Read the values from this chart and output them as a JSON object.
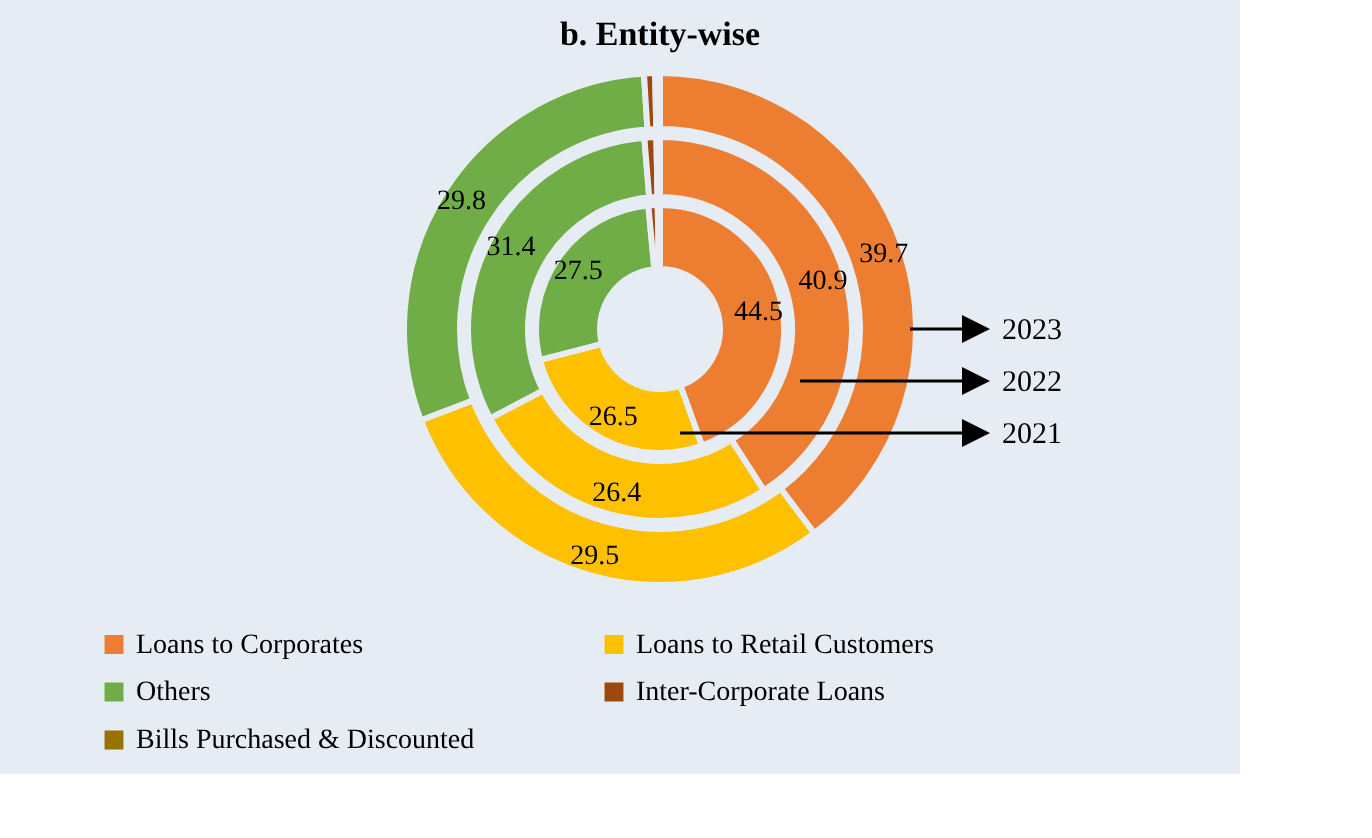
{
  "chart_data": {
    "type": "donut",
    "title": "b. Entity-wise",
    "categories": [
      "Loans to Corporates",
      "Loans to Retail Customers",
      "Others",
      "Inter-Corporate Loans",
      "Bills Purchased & Discounted"
    ],
    "colors": [
      "#ed7d31",
      "#ffc000",
      "#70ad47",
      "#9e480e",
      "#997300"
    ],
    "series": [
      {
        "name": "2021",
        "values": [
          44.5,
          26.5,
          27.5,
          1.2,
          0.3
        ],
        "value_labels": [
          "44.5",
          "26.5",
          "27.5",
          null,
          null
        ]
      },
      {
        "name": "2022",
        "values": [
          40.9,
          26.4,
          31.4,
          1.0,
          0.3
        ],
        "value_labels": [
          "40.9",
          "26.4",
          "31.4",
          null,
          null
        ]
      },
      {
        "name": "2023",
        "values": [
          39.7,
          29.5,
          29.8,
          0.7,
          0.3
        ],
        "value_labels": [
          "39.7",
          "29.5",
          "29.8",
          null,
          null
        ]
      }
    ],
    "legend": "bottom"
  }
}
